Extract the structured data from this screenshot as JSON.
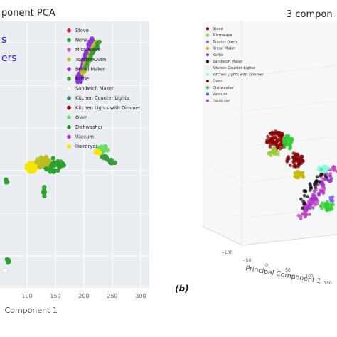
{
  "chart_data": [
    {
      "type": "scatter",
      "title": "ponent PCA",
      "subtitle_lines": [
        "s",
        "ers"
      ],
      "xlabel": "l Component 1",
      "x_ticks": [
        "100",
        "150",
        "200",
        "250",
        "300"
      ],
      "legend": {
        "placement": "top-right",
        "entries": [
          {
            "label": "Stove",
            "color": "#d62728"
          },
          {
            "label": "None",
            "color": "#2ca02c"
          },
          {
            "label": "Microwave",
            "color": "#bf5fbf"
          },
          {
            "label": "Toaster Oven",
            "color": "#bcbd22"
          },
          {
            "label": "Bread Maker",
            "color": "#8c2fe0"
          },
          {
            "label": "Kettle",
            "color": "#3a9a3a"
          },
          {
            "label": "Sandwich Maker",
            "color": "#ffffff"
          },
          {
            "label": "Kitchen Counter Lights",
            "color": "#2e8b57"
          },
          {
            "label": "Kitchen Lights with Dimmer",
            "color": "#8b0000"
          },
          {
            "label": "Oven",
            "color": "#66dd66"
          },
          {
            "label": "Dishwasher",
            "color": "#228b22"
          },
          {
            "label": "Vaccum",
            "color": "#b03cc8"
          },
          {
            "label": "Hairdryer",
            "color": "#f2e600"
          }
        ]
      },
      "clusters": [
        {
          "series": "Bread Maker",
          "shape": "band",
          "x0": 110,
          "y0": 55,
          "x1": 130,
          "y1": 115,
          "n": 60,
          "w": 3
        },
        {
          "series": "Toaster Oven",
          "shape": "band",
          "x0": 115,
          "y0": 60,
          "x1": 135,
          "y1": 105,
          "n": 30,
          "w": 2
        },
        {
          "series": "Kettle",
          "shape": "band",
          "x0": 120,
          "y0": 58,
          "x1": 140,
          "y1": 95,
          "n": 20,
          "w": 2
        },
        {
          "series": "Hairdryer",
          "shape": "blob",
          "cx": 45,
          "cy": 235,
          "rx": 8,
          "ry": 7,
          "n": 40
        },
        {
          "series": "None",
          "shape": "blob",
          "cx": 75,
          "cy": 232,
          "rx": 15,
          "ry": 10,
          "n": 30
        },
        {
          "series": "Toaster Oven",
          "shape": "blob",
          "cx": 60,
          "cy": 228,
          "rx": 10,
          "ry": 8,
          "n": 22
        },
        {
          "series": "Oven",
          "shape": "blob",
          "cx": 145,
          "cy": 210,
          "rx": 8,
          "ry": 5,
          "n": 14
        },
        {
          "series": "Kettle",
          "shape": "band",
          "x0": 145,
          "y0": 230,
          "x1": 160,
          "y1": 220,
          "n": 20,
          "w": 2
        },
        {
          "series": "Hairdryer",
          "shape": "blob",
          "cx": 138,
          "cy": 213,
          "rx": 4,
          "ry": 3,
          "n": 8
        },
        {
          "series": "None",
          "shape": "blob",
          "cx": 62,
          "cy": 268,
          "rx": 3,
          "ry": 8,
          "n": 6
        },
        {
          "series": "None",
          "shape": "blob",
          "cx": 10,
          "cy": 255,
          "rx": 3,
          "ry": 3,
          "n": 3
        },
        {
          "series": "None",
          "shape": "blob",
          "cx": 12,
          "cy": 368,
          "rx": 3,
          "ry": 8,
          "n": 4
        },
        {
          "series": "Sandwich Maker",
          "shape": "blob",
          "cx": 7,
          "cy": 380,
          "rx": 2,
          "ry": 2,
          "n": 2
        }
      ]
    },
    {
      "type": "scatter",
      "title": "3 compon",
      "xlabel": "Principal Component 1",
      "panel_label": "(b)",
      "x_ticks": [
        "−100",
        "−50",
        "0",
        "50",
        "100",
        "150"
      ],
      "legend": {
        "placement": "top-left",
        "entries": [
          {
            "label": "Stove",
            "color": "#8b0000"
          },
          {
            "label": "Microwave",
            "color": "#9acd32"
          },
          {
            "label": "Toaster Oven",
            "color": "#7b68ee"
          },
          {
            "label": "Bread Maker",
            "color": "#c8b400"
          },
          {
            "label": "Kettle",
            "color": "#9932cc"
          },
          {
            "label": "Sandwich Maker",
            "color": "#111111"
          },
          {
            "label": "Kitchen Counter Lights",
            "color": "#ffffff"
          },
          {
            "label": "Kitchen Lights with Dimmer",
            "color": "#7fffd4"
          },
          {
            "label": "Oven",
            "color": "#800000"
          },
          {
            "label": "Dishwasher",
            "color": "#32cd32"
          },
          {
            "label": "Vaccum",
            "color": "#4169e1"
          },
          {
            "label": "Hairdryer",
            "color": "#c03cc0"
          }
        ]
      },
      "clusters": [
        {
          "series": "Stove",
          "shape": "blob",
          "cx": 104,
          "cy": 198,
          "rx": 14,
          "ry": 14,
          "n": 90
        },
        {
          "series": "Oven",
          "shape": "blob",
          "cx": 130,
          "cy": 225,
          "rx": 12,
          "ry": 10,
          "n": 50
        },
        {
          "series": "Dishwasher",
          "shape": "blob",
          "cx": 120,
          "cy": 200,
          "rx": 8,
          "ry": 10,
          "n": 40
        },
        {
          "series": "Microwave",
          "shape": "blob",
          "cx": 100,
          "cy": 215,
          "rx": 8,
          "ry": 6,
          "n": 25
        },
        {
          "series": "Hairdryer",
          "shape": "band",
          "x0": 140,
          "y0": 235,
          "x1": 185,
          "y1": 305,
          "n": 80,
          "w": 6
        },
        {
          "series": "Sandwich Maker",
          "shape": "band",
          "x0": 135,
          "y0": 240,
          "x1": 175,
          "y1": 290,
          "n": 30,
          "w": 6
        },
        {
          "series": "Kettle",
          "shape": "band",
          "x0": 145,
          "y0": 250,
          "x1": 180,
          "y1": 295,
          "n": 30,
          "w": 5
        },
        {
          "series": "Bread Maker",
          "shape": "blob",
          "cx": 136,
          "cy": 246,
          "rx": 8,
          "ry": 5,
          "n": 25
        },
        {
          "series": "Dishwasher",
          "shape": "blob",
          "cx": 175,
          "cy": 290,
          "rx": 10,
          "ry": 6,
          "n": 30
        },
        {
          "series": "Kitchen Lights with Dimmer",
          "shape": "blob",
          "cx": 170,
          "cy": 238,
          "rx": 8,
          "ry": 5,
          "n": 20
        },
        {
          "series": "Toaster Oven",
          "shape": "blob",
          "cx": 182,
          "cy": 280,
          "rx": 4,
          "ry": 4,
          "n": 8
        }
      ]
    }
  ]
}
